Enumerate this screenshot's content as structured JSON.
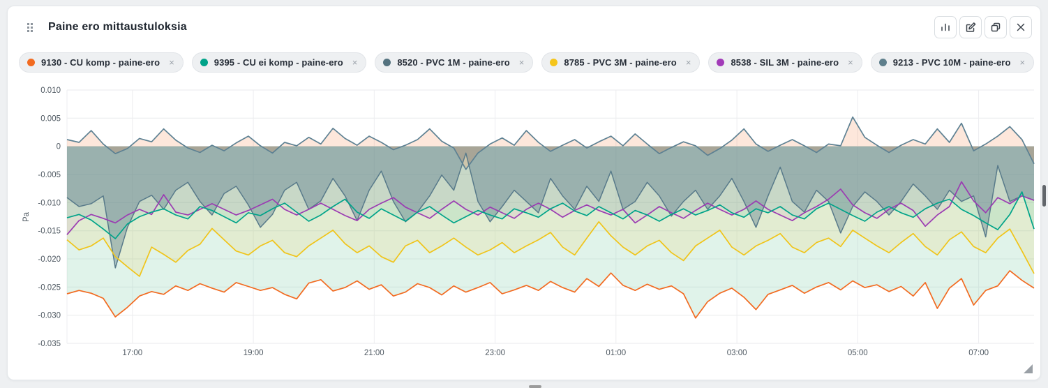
{
  "panel": {
    "title": "Paine ero mittaustuloksia",
    "toolbar": [
      {
        "name": "chart-type",
        "icon": "bar-chart-icon"
      },
      {
        "name": "edit",
        "icon": "edit-icon"
      },
      {
        "name": "duplicate",
        "icon": "copy-icon"
      },
      {
        "name": "close",
        "icon": "close-icon"
      }
    ]
  },
  "legend": {
    "remove_icon": "×",
    "chips": [
      {
        "label": "9130 - CU komp - paine-ero",
        "color": "#f26b21"
      },
      {
        "label": "9395 - CU ei komp - paine-ero",
        "color": "#00a389"
      },
      {
        "label": "8520 - PVC 1M - paine-ero",
        "color": "#54727f"
      },
      {
        "label": "8785 - PVC 3M - paine-ero",
        "color": "#f5c51b"
      },
      {
        "label": "8538 - SIL 3M - paine-ero",
        "color": "#a23bb8"
      },
      {
        "label": "9213 - PVC 10M - paine-ero",
        "color": "#5e7f8c"
      }
    ]
  },
  "chart_data": {
    "type": "line",
    "title": "Paine ero mittaustuloksia",
    "ylabel": "Pa",
    "ylim": [
      -0.035,
      0.01
    ],
    "grid": true,
    "legend_position": "top-chips",
    "x_range": [
      "15:55",
      "07:55"
    ],
    "yticks": [
      {
        "v": 0.01,
        "label": "0.010"
      },
      {
        "v": 0.005,
        "label": "0.005"
      },
      {
        "v": 0,
        "label": "0"
      },
      {
        "v": -0.005,
        "label": "-0.005"
      },
      {
        "v": -0.01,
        "label": "-0.010"
      },
      {
        "v": -0.015,
        "label": "-0.015"
      },
      {
        "v": -0.02,
        "label": "-0.020"
      },
      {
        "v": -0.025,
        "label": "-0.025"
      },
      {
        "v": -0.03,
        "label": "-0.030"
      },
      {
        "v": -0.035,
        "label": "-0.035"
      }
    ],
    "xticks": [
      {
        "f": 0.0677,
        "label": "17:00"
      },
      {
        "f": 0.1927,
        "label": "19:00"
      },
      {
        "f": 0.3177,
        "label": "21:00"
      },
      {
        "f": 0.4427,
        "label": "23:00"
      },
      {
        "f": 0.5677,
        "label": "01:00"
      },
      {
        "f": 0.6927,
        "label": "03:00"
      },
      {
        "f": 0.8177,
        "label": "05:00"
      },
      {
        "f": 0.9427,
        "label": "07:00"
      }
    ],
    "series": [
      {
        "name": "9130 - CU komp - paine-ero",
        "color": "#f26b21",
        "fill": "rgba(144,212,180,0.28)",
        "width": 1.7,
        "values": [
          -0.0262,
          -0.0256,
          -0.0261,
          -0.027,
          -0.0303,
          -0.0286,
          -0.0266,
          -0.0258,
          -0.0263,
          -0.0248,
          -0.0256,
          -0.0244,
          -0.0252,
          -0.0259,
          -0.0242,
          -0.0249,
          -0.0256,
          -0.0251,
          -0.0263,
          -0.0271,
          -0.0243,
          -0.0237,
          -0.0257,
          -0.0251,
          -0.0239,
          -0.0254,
          -0.0246,
          -0.0266,
          -0.0259,
          -0.0244,
          -0.0251,
          -0.0264,
          -0.0248,
          -0.0259,
          -0.0251,
          -0.0242,
          -0.0262,
          -0.0255,
          -0.0247,
          -0.0256,
          -0.024,
          -0.0251,
          -0.0259,
          -0.0235,
          -0.0249,
          -0.0225,
          -0.0247,
          -0.0256,
          -0.0245,
          -0.0254,
          -0.0248,
          -0.0262,
          -0.0305,
          -0.0276,
          -0.0261,
          -0.0252,
          -0.0268,
          -0.029,
          -0.0263,
          -0.0255,
          -0.0247,
          -0.0261,
          -0.025,
          -0.0242,
          -0.0255,
          -0.0239,
          -0.0251,
          -0.0246,
          -0.0258,
          -0.0249,
          -0.0266,
          -0.0242,
          -0.0288,
          -0.0252,
          -0.0235,
          -0.0282,
          -0.0256,
          -0.0248,
          -0.0221,
          -0.0238,
          -0.0252
        ]
      },
      {
        "name": "9395 - CU ei komp - paine-ero",
        "color": "#00a389",
        "fill": "rgba(0,163,137,0.10)",
        "width": 1.7,
        "values": [
          -0.0127,
          -0.0121,
          -0.0131,
          -0.0147,
          -0.0164,
          -0.0138,
          -0.0125,
          -0.0117,
          -0.0111,
          -0.0122,
          -0.0129,
          -0.0107,
          -0.0114,
          -0.0125,
          -0.0136,
          -0.0118,
          -0.0123,
          -0.0111,
          -0.0101,
          -0.0117,
          -0.0133,
          -0.0122,
          -0.0107,
          -0.0094,
          -0.0117,
          -0.0128,
          -0.0111,
          -0.0122,
          -0.0133,
          -0.0117,
          -0.0107,
          -0.0122,
          -0.0136,
          -0.0125,
          -0.0114,
          -0.0122,
          -0.0129,
          -0.0111,
          -0.0118,
          -0.0126,
          -0.0111,
          -0.0101,
          -0.0115,
          -0.0123,
          -0.0107,
          -0.0118,
          -0.0129,
          -0.0114,
          -0.0122,
          -0.0133,
          -0.0121,
          -0.0111,
          -0.0122,
          -0.0114,
          -0.0104,
          -0.0118,
          -0.0126,
          -0.0111,
          -0.0118,
          -0.0107,
          -0.0122,
          -0.0129,
          -0.0111,
          -0.0101,
          -0.0112,
          -0.0123,
          -0.0133,
          -0.0117,
          -0.0107,
          -0.0118,
          -0.0126,
          -0.0111,
          -0.0101,
          -0.0094,
          -0.0112,
          -0.0123,
          -0.0136,
          -0.0148,
          -0.0121,
          -0.0081,
          -0.0147
        ]
      },
      {
        "name": "8520 - PVC 1M - paine-ero",
        "color": "#5d8193",
        "fill": "rgba(242,107,33,0.16)",
        "width": 1.7,
        "values": [
          0.0012,
          0.0007,
          0.0028,
          0.0004,
          -0.0013,
          -0.0004,
          0.0014,
          0.0008,
          0.0031,
          0.0011,
          -0.0003,
          -0.0011,
          0.0002,
          -0.0008,
          0.0006,
          0.0018,
          0.0001,
          -0.0012,
          0.0007,
          0.0001,
          0.0016,
          0.0004,
          0.0032,
          0.0014,
          0.0002,
          0.0018,
          0.0007,
          -0.0006,
          0.0002,
          0.0012,
          0.0031,
          0.0009,
          -0.0003,
          -0.0041,
          -0.0012,
          0.0004,
          0.0015,
          0.0002,
          0.0028,
          0.0007,
          -0.0009,
          0.0002,
          0.0012,
          -0.0003,
          0.0008,
          0.0018,
          0.0001,
          0.0022,
          0.0004,
          -0.0013,
          -0.0002,
          0.0008,
          0.0001,
          -0.0016,
          -0.0004,
          0.0011,
          0.0031,
          0.0004,
          -0.0009,
          0.0002,
          0.0012,
          0.0001,
          -0.0011,
          0.0004,
          0.0001,
          0.0052,
          0.0016,
          0.0002,
          -0.0011,
          0.0002,
          0.0012,
          0.0004,
          0.0031,
          0.0007,
          0.0041,
          -0.0008,
          0.0004,
          0.0018,
          0.0035,
          0.0012,
          -0.0031
        ]
      },
      {
        "name": "8785 - PVC 3M - paine-ero",
        "color": "#f0c419",
        "fill": "rgba(240,200,60,0.14)",
        "width": 1.7,
        "values": [
          -0.0166,
          -0.0184,
          -0.0177,
          -0.0163,
          -0.0196,
          -0.0214,
          -0.0231,
          -0.0179,
          -0.0192,
          -0.0206,
          -0.0185,
          -0.0174,
          -0.0146,
          -0.0166,
          -0.0186,
          -0.0193,
          -0.0177,
          -0.0167,
          -0.0189,
          -0.0196,
          -0.0177,
          -0.0163,
          -0.0149,
          -0.0173,
          -0.0189,
          -0.0177,
          -0.0196,
          -0.0206,
          -0.0177,
          -0.0167,
          -0.0189,
          -0.0177,
          -0.0163,
          -0.0179,
          -0.0193,
          -0.0184,
          -0.0171,
          -0.0189,
          -0.0177,
          -0.0166,
          -0.0153,
          -0.0179,
          -0.0193,
          -0.0163,
          -0.0134,
          -0.0159,
          -0.0179,
          -0.0193,
          -0.0177,
          -0.0167,
          -0.0189,
          -0.0203,
          -0.0177,
          -0.0163,
          -0.0149,
          -0.0179,
          -0.0193,
          -0.0177,
          -0.0167,
          -0.0155,
          -0.0179,
          -0.0189,
          -0.0171,
          -0.0163,
          -0.0178,
          -0.0149,
          -0.0163,
          -0.0177,
          -0.0189,
          -0.0171,
          -0.0155,
          -0.0178,
          -0.0193,
          -0.0166,
          -0.0152,
          -0.0178,
          -0.0189,
          -0.0163,
          -0.0147,
          -0.0186,
          -0.0226
        ]
      },
      {
        "name": "8538 - SIL 3M - paine-ero",
        "color": "#9b3bb2",
        "fill": "rgba(162,59,184,0.08)",
        "width": 1.7,
        "values": [
          -0.0157,
          -0.0132,
          -0.0121,
          -0.0128,
          -0.0136,
          -0.0122,
          -0.0112,
          -0.0121,
          -0.0086,
          -0.0117,
          -0.0122,
          -0.0112,
          -0.0102,
          -0.0112,
          -0.0122,
          -0.0114,
          -0.0104,
          -0.0094,
          -0.0112,
          -0.0122,
          -0.0112,
          -0.0101,
          -0.0112,
          -0.0123,
          -0.0132,
          -0.0112,
          -0.0101,
          -0.0091,
          -0.0108,
          -0.0118,
          -0.0128,
          -0.0112,
          -0.0097,
          -0.0112,
          -0.0122,
          -0.0108,
          -0.0118,
          -0.0128,
          -0.0112,
          -0.0101,
          -0.0112,
          -0.0126,
          -0.0114,
          -0.0104,
          -0.0114,
          -0.0122,
          -0.0112,
          -0.0136,
          -0.0122,
          -0.0107,
          -0.0118,
          -0.0128,
          -0.0114,
          -0.0101,
          -0.0112,
          -0.0122,
          -0.0112,
          -0.0097,
          -0.0112,
          -0.0122,
          -0.0132,
          -0.0118,
          -0.0107,
          -0.0094,
          -0.0076,
          -0.0104,
          -0.0118,
          -0.0128,
          -0.0112,
          -0.0101,
          -0.0114,
          -0.0142,
          -0.0122,
          -0.0107,
          -0.0063,
          -0.0097,
          -0.0118,
          -0.0091,
          -0.0102,
          -0.0088,
          -0.0096
        ]
      },
      {
        "name": "9213 - PVC 10M - paine-ero",
        "color": "#587a8a",
        "fill": "rgba(91,125,141,0.42)",
        "width": 1.5,
        "values": [
          -0.0091,
          -0.0107,
          -0.0102,
          -0.0088,
          -0.0216,
          -0.0144,
          -0.0098,
          -0.0087,
          -0.0112,
          -0.0078,
          -0.0064,
          -0.0098,
          -0.0122,
          -0.0084,
          -0.0071,
          -0.0104,
          -0.0144,
          -0.0121,
          -0.0078,
          -0.0064,
          -0.0112,
          -0.0097,
          -0.0057,
          -0.0088,
          -0.0132,
          -0.0078,
          -0.0044,
          -0.0098,
          -0.0134,
          -0.0117,
          -0.0088,
          -0.0051,
          -0.0078,
          -0.0012,
          -0.0098,
          -0.0134,
          -0.0107,
          -0.0078,
          -0.0098,
          -0.0118,
          -0.0057,
          -0.0088,
          -0.0112,
          -0.0071,
          -0.0098,
          -0.0044,
          -0.0112,
          -0.0098,
          -0.0064,
          -0.0088,
          -0.0124,
          -0.0098,
          -0.0078,
          -0.0112,
          -0.0088,
          -0.0057,
          -0.0098,
          -0.0144,
          -0.0088,
          -0.0037,
          -0.0098,
          -0.0117,
          -0.0078,
          -0.0098,
          -0.0154,
          -0.0107,
          -0.0081,
          -0.0098,
          -0.0122,
          -0.0098,
          -0.0067,
          -0.0088,
          -0.0112,
          -0.0078,
          -0.0098,
          -0.0088,
          -0.0161,
          -0.0034,
          -0.0098,
          -0.0088,
          -0.0096
        ]
      }
    ]
  }
}
